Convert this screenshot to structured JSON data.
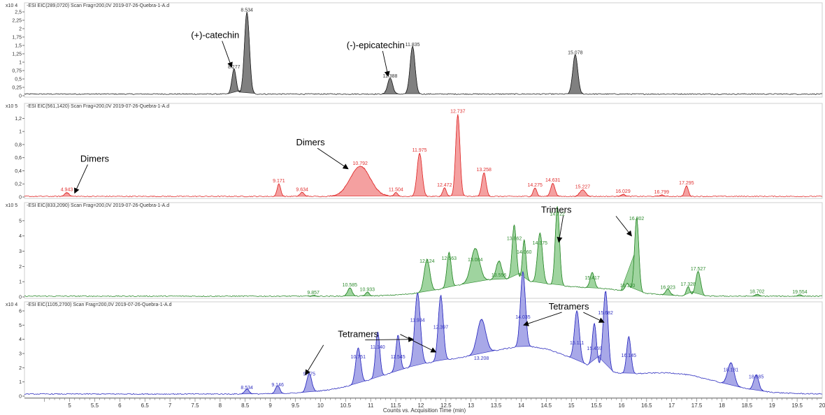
{
  "chart_data": {
    "type": "line",
    "xlabel": "Counts vs. Acquisition Time (min)",
    "xlim": [
      4.1,
      20
    ],
    "xticks": [
      "5",
      "5.5",
      "6",
      "6.5",
      "7",
      "7.5",
      "8",
      "8.5",
      "9",
      "9.5",
      "10",
      "10.5",
      "11",
      "11.5",
      "12",
      "12.5",
      "13",
      "13.5",
      "14",
      "14.5",
      "15",
      "15.5",
      "16",
      "16.5",
      "17",
      "17.5",
      "18",
      "18.5",
      "19",
      "19.5",
      "20"
    ],
    "panels": [
      {
        "header": "-ESI EIC(289,0720) Scan Frag=200,0V 2019-07-26-Quebra-1-A.d",
        "scale": "x10 4",
        "color": "#222222",
        "fill": "#808080",
        "ylim": [
          0,
          2.5
        ],
        "yticks": [
          "0",
          "0,25",
          "0,5",
          "0,75",
          "1",
          "1,25",
          "1,5",
          "1,75",
          "2",
          "2,25",
          "2,5"
        ],
        "baseline": 0.05,
        "peaks": [
          {
            "rt": "8.277",
            "x": 8.277,
            "y": 0.75,
            "w": 0.06
          },
          {
            "rt": "8.534",
            "x": 8.534,
            "y": 2.45,
            "w": 0.07
          },
          {
            "rt": "11.388",
            "x": 11.388,
            "y": 0.48,
            "w": 0.07
          },
          {
            "rt": "11.835",
            "x": 11.835,
            "y": 1.42,
            "w": 0.07
          },
          {
            "rt": "15.078",
            "x": 15.078,
            "y": 1.18,
            "w": 0.07
          }
        ],
        "annotations": [
          {
            "text": "(+)-catechin",
            "tx": 7.9,
            "ty": 1.8,
            "ax": 8.23,
            "ay": 0.85
          },
          {
            "text": "(-)-epicatechin",
            "tx": 11.1,
            "ty": 1.5,
            "ax": 11.35,
            "ay": 0.58
          }
        ]
      },
      {
        "header": "-ESI EIC(561,1420) Scan Frag=200,0V 2019-07-26-Quebra-1-A.d",
        "scale": "x10 5",
        "color": "#e03030",
        "fill": "#f4a0a0",
        "ylim": [
          0,
          1.3
        ],
        "yticks": [
          "0",
          "0,2",
          "0,4",
          "0,6",
          "0,8",
          "1",
          "1,2"
        ],
        "baseline": 0.01,
        "peaks": [
          {
            "rt": "4.943",
            "x": 4.943,
            "y": 0.06,
            "w": 0.06
          },
          {
            "rt": "9.171",
            "x": 9.171,
            "y": 0.19,
            "w": 0.05
          },
          {
            "rt": "9.634",
            "x": 9.634,
            "y": 0.06,
            "w": 0.06
          },
          {
            "rt": "10.792",
            "x": 10.792,
            "y": 0.46,
            "w": 0.28
          },
          {
            "rt": "11.504",
            "x": 11.504,
            "y": 0.06,
            "w": 0.05
          },
          {
            "rt": "11.975",
            "x": 11.975,
            "y": 0.66,
            "w": 0.07
          },
          {
            "rt": "12.472",
            "x": 12.472,
            "y": 0.13,
            "w": 0.05
          },
          {
            "rt": "12.737",
            "x": 12.737,
            "y": 1.25,
            "w": 0.06
          },
          {
            "rt": "13.258",
            "x": 13.258,
            "y": 0.36,
            "w": 0.06
          },
          {
            "rt": "14.275",
            "x": 14.275,
            "y": 0.13,
            "w": 0.05
          },
          {
            "rt": "14.631",
            "x": 14.631,
            "y": 0.2,
            "w": 0.06
          },
          {
            "rt": "15.227",
            "x": 15.227,
            "y": 0.1,
            "w": 0.08
          },
          {
            "rt": "16.029",
            "x": 16.029,
            "y": 0.03,
            "w": 0.06
          },
          {
            "rt": "16.799",
            "x": 16.799,
            "y": 0.02,
            "w": 0.06
          },
          {
            "rt": "17.295",
            "x": 17.295,
            "y": 0.16,
            "w": 0.05
          }
        ],
        "annotations": [
          {
            "text": "Dimers",
            "tx": 5.5,
            "ty": 0.58,
            "ax": 5.1,
            "ay": 0.06
          },
          {
            "text": "Dimers",
            "tx": 9.8,
            "ty": 0.83,
            "ax": 10.55,
            "ay": 0.43
          }
        ]
      },
      {
        "header": "-ESI EIC(833,2090) Scan Frag=200,0V 2019-07-26-Quebra-1-A.d",
        "scale": "x10 5",
        "color": "#2e8b2e",
        "fill": "#9fd49f",
        "ylim": [
          0,
          5.5
        ],
        "yticks": [
          "0",
          "1",
          "2",
          "3",
          "4",
          "5"
        ],
        "baseline": 0.05,
        "peaks": [
          {
            "rt": "9.857",
            "x": 9.857,
            "y": 0.05,
            "w": 0.05
          },
          {
            "rt": "10.585",
            "x": 10.585,
            "y": 0.55,
            "w": 0.06
          },
          {
            "rt": "10.933",
            "x": 10.933,
            "y": 0.25,
            "w": 0.05
          },
          {
            "rt": "12.124",
            "x": 12.124,
            "y": 2.1,
            "w": 0.08
          },
          {
            "rt": "12.563",
            "x": 12.563,
            "y": 2.3,
            "w": 0.06
          },
          {
            "rt": "13.084",
            "x": 13.084,
            "y": 2.2,
            "w": 0.12
          },
          {
            "rt": "13.556",
            "x": 13.556,
            "y": 1.2,
            "w": 0.08
          },
          {
            "rt": "13.862",
            "x": 13.862,
            "y": 3.6,
            "w": 0.06
          },
          {
            "rt": "14.060",
            "x": 14.06,
            "y": 2.7,
            "w": 0.05
          },
          {
            "rt": "14.375",
            "x": 14.375,
            "y": 3.3,
            "w": 0.07
          },
          {
            "rt": "14.722",
            "x": 14.722,
            "y": 5.2,
            "w": 0.06
          },
          {
            "rt": "15.417",
            "x": 15.417,
            "y": 1.0,
            "w": 0.06
          },
          {
            "rt": "16.120",
            "x": 16.12,
            "y": 0.5,
            "w": 0.06
          },
          {
            "rt": "16.302",
            "x": 16.302,
            "y": 4.9,
            "w": 0.06
          },
          {
            "rt": "16.923",
            "x": 16.923,
            "y": 0.4,
            "w": 0.06
          },
          {
            "rt": "17.328",
            "x": 17.328,
            "y": 0.6,
            "w": 0.05
          },
          {
            "rt": "17.527",
            "x": 17.527,
            "y": 1.6,
            "w": 0.07
          },
          {
            "rt": "18.702",
            "x": 18.702,
            "y": 0.12,
            "w": 0.05
          },
          {
            "rt": "19.554",
            "x": 19.554,
            "y": 0.1,
            "w": 0.05
          }
        ],
        "annotations": [
          {
            "text": "Trimers",
            "tx": 14.7,
            "ty": 5.7,
            "ax": 14.75,
            "ay": 3.6
          },
          {
            "text": "",
            "tx": 15.75,
            "ty": 5.3,
            "ax": 16.2,
            "ay": 4.0
          }
        ]
      },
      {
        "header": "-ESI EIC(1105,2700) Scan Frag=200,0V 2019-07-26-Quebra-1-A.d",
        "scale": "x10 4",
        "color": "#3030c0",
        "fill": "#a8a8e8",
        "ylim": [
          0,
          6
        ],
        "yticks": [
          "0",
          "1",
          "2",
          "3",
          "4",
          "5",
          "6"
        ],
        "baseline": 0.15,
        "peaks": [
          {
            "rt": "8.534",
            "x": 8.534,
            "y": 0.35,
            "w": 0.06
          },
          {
            "rt": "9.146",
            "x": 9.146,
            "y": 0.55,
            "w": 0.06
          },
          {
            "rt": "9.775",
            "x": 9.775,
            "y": 1.3,
            "w": 0.07
          },
          {
            "rt": "10.751",
            "x": 10.751,
            "y": 2.5,
            "w": 0.07
          },
          {
            "rt": "11.140",
            "x": 11.14,
            "y": 3.2,
            "w": 0.06
          },
          {
            "rt": "11.545",
            "x": 11.545,
            "y": 2.5,
            "w": 0.06
          },
          {
            "rt": "11.934",
            "x": 11.934,
            "y": 5.1,
            "w": 0.08
          },
          {
            "rt": "12.397",
            "x": 12.397,
            "y": 4.6,
            "w": 0.07
          },
          {
            "rt": "13.208",
            "x": 13.208,
            "y": 2.4,
            "w": 0.12
          },
          {
            "rt": "14.035",
            "x": 14.035,
            "y": 5.3,
            "w": 0.07
          },
          {
            "rt": "15.111",
            "x": 15.111,
            "y": 3.5,
            "w": 0.07
          },
          {
            "rt": "15.459",
            "x": 15.459,
            "y": 3.1,
            "w": 0.06
          },
          {
            "rt": "15.682",
            "x": 15.682,
            "y": 5.6,
            "w": 0.07
          },
          {
            "rt": "16.145",
            "x": 16.145,
            "y": 2.6,
            "w": 0.06
          },
          {
            "rt": "18.181",
            "x": 18.181,
            "y": 1.6,
            "w": 0.09
          },
          {
            "rt": "18.685",
            "x": 18.685,
            "y": 1.1,
            "w": 0.07
          }
        ],
        "annotations": [
          {
            "text": "Tetramers",
            "tx": 10.75,
            "ty": 4.35,
            "ax": 11.85,
            "ay": 4.0
          },
          {
            "text": "",
            "tx": 11.45,
            "ty": 4.35,
            "ax": 12.3,
            "ay": 3.1
          },
          {
            "text": "",
            "tx": 10.2,
            "ty": 3.6,
            "ax": 9.7,
            "ay": 1.5
          },
          {
            "text": "Tetramers",
            "tx": 14.95,
            "ty": 6.3,
            "ax": 14.05,
            "ay": 5.0
          },
          {
            "text": "",
            "tx": 15.1,
            "ty": 5.9,
            "ax": 15.65,
            "ay": 5.2
          }
        ]
      }
    ]
  }
}
